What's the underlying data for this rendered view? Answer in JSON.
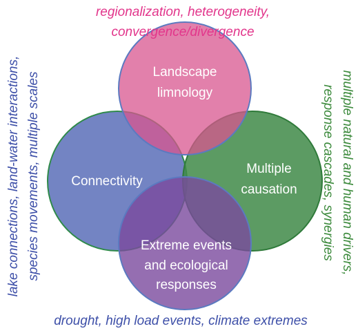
{
  "top_note": {
    "lines": [
      "regionalization, heterogeneity,",
      "convergence/divergence"
    ]
  },
  "left_note": {
    "lines": [
      "lake connections, land-water interactions,",
      "species movements, multiple scales"
    ]
  },
  "right_note": {
    "lines": [
      "multiple natural and human drivers,",
      "response cascades, synergies"
    ]
  },
  "bottom_note": {
    "text": "drought, high load events, climate extremes"
  },
  "circles": [
    {
      "label": [
        "Landscape",
        "limnology"
      ]
    },
    {
      "label": [
        "Connectivity"
      ]
    },
    {
      "label": [
        "Multiple",
        "causation"
      ]
    },
    {
      "label": [
        "Extreme events",
        "and ecological",
        "responses"
      ]
    }
  ]
}
